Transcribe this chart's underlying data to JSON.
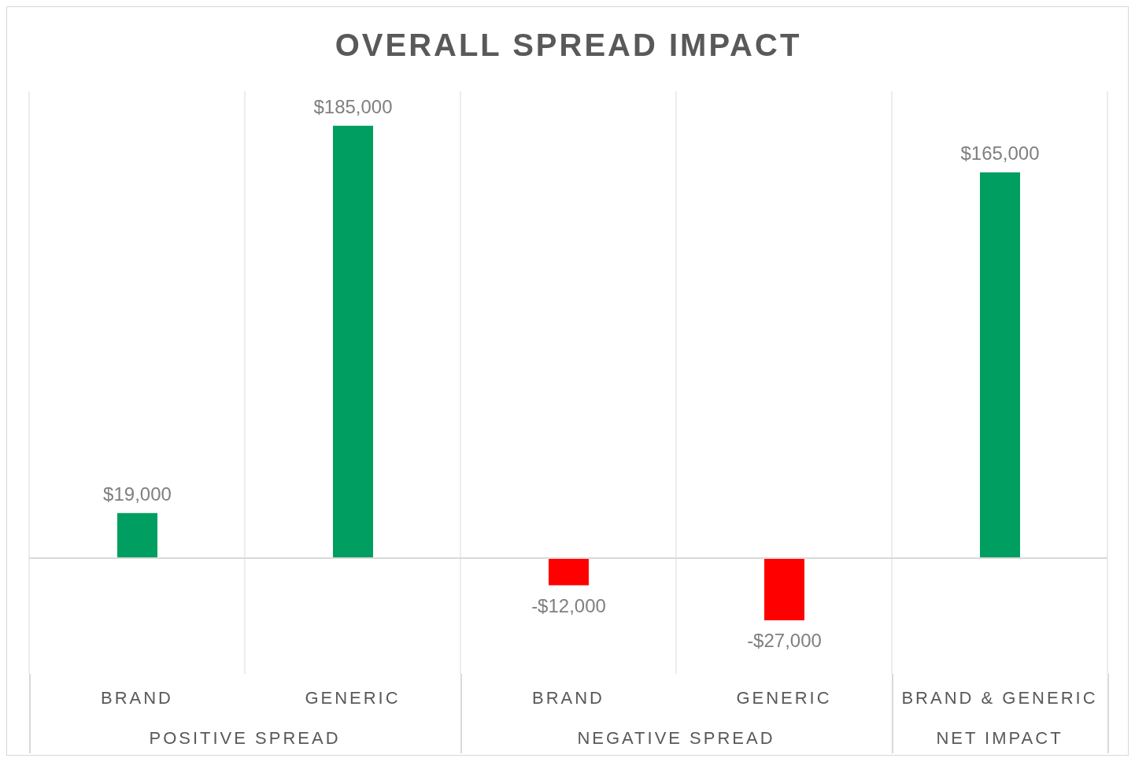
{
  "chart_data": {
    "type": "bar",
    "title": "OVERALL SPREAD IMPACT",
    "categories": [
      "BRAND",
      "GENERIC",
      "BRAND",
      "GENERIC",
      "BRAND & GENERIC"
    ],
    "values": [
      19000,
      185000,
      -12000,
      -27000,
      165000
    ],
    "colors": [
      "#009e60",
      "#009e60",
      "#ff0000",
      "#ff0000",
      "#009e60"
    ],
    "value_labels": [
      "$19,000",
      "$185,000",
      "-$12,000",
      "-$27,000",
      "$165,000"
    ],
    "annotations": [
      "POSITIVE SPREAD",
      "NEGATIVE SPREAD",
      "NET IMPACT"
    ],
    "grid": "x",
    "legend": false
  }
}
